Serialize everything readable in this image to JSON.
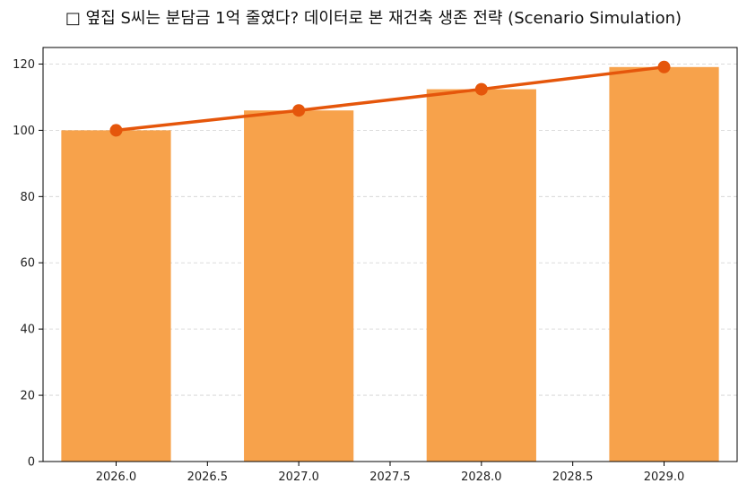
{
  "chart_data": {
    "type": "bar",
    "title": "□ 옆집 S씨는 분담금 1억 줄였다? 데이터로 본 재건축 생존 전략 (Scenario Simulation)",
    "xlabel": "",
    "ylabel": "",
    "x": [
      2026,
      2027,
      2028,
      2029
    ],
    "values": [
      100,
      106,
      112.4,
      119.1
    ],
    "line_values": [
      100,
      106,
      112.4,
      119.1
    ],
    "xlim": [
      2025.6,
      2029.4
    ],
    "ylim": [
      0,
      125
    ],
    "xticks": [
      "2026.0",
      "2026.5",
      "2027.0",
      "2027.5",
      "2028.0",
      "2028.5",
      "2029.0"
    ],
    "xtick_values": [
      2026.0,
      2026.5,
      2027.0,
      2027.5,
      2028.0,
      2028.5,
      2029.0
    ],
    "yticks": [
      "0",
      "20",
      "40",
      "60",
      "80",
      "100",
      "120"
    ],
    "ytick_values": [
      0,
      20,
      40,
      60,
      80,
      100,
      120
    ],
    "bar_width_data": 0.6,
    "grid": "y-dashed",
    "colors": {
      "bar": "#f7a24b",
      "line": "#e5560b",
      "grid": "#d0d0d0",
      "axis": "#000000"
    }
  }
}
